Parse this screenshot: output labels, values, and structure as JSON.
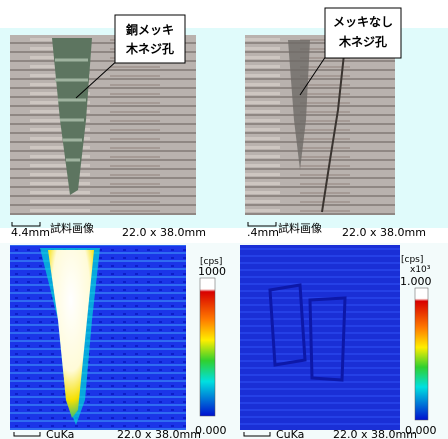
{
  "panels": [
    {
      "callout": [
        "銅メッキ",
        "木ネジ孔"
      ],
      "scale": "4.4mm",
      "label": "試料画像",
      "size": "22.0 x 38.0mm"
    },
    {
      "callout": [
        "メッキなし",
        "木ネジ孔"
      ],
      "scale": ".4mm",
      "label": "試料画像",
      "size": "22.0 x 38.0mm"
    },
    {
      "unit": "[cps]",
      "max": "1000",
      "min": "0.000",
      "element": "CuKa",
      "size": "22.0 x 38.0mm"
    },
    {
      "unit": "[cps]",
      "multiplier": "x10³",
      "max": "1.000",
      "min": "0.000",
      "element": "CuKa",
      "size": "22.0 x 38.0mm"
    }
  ]
}
